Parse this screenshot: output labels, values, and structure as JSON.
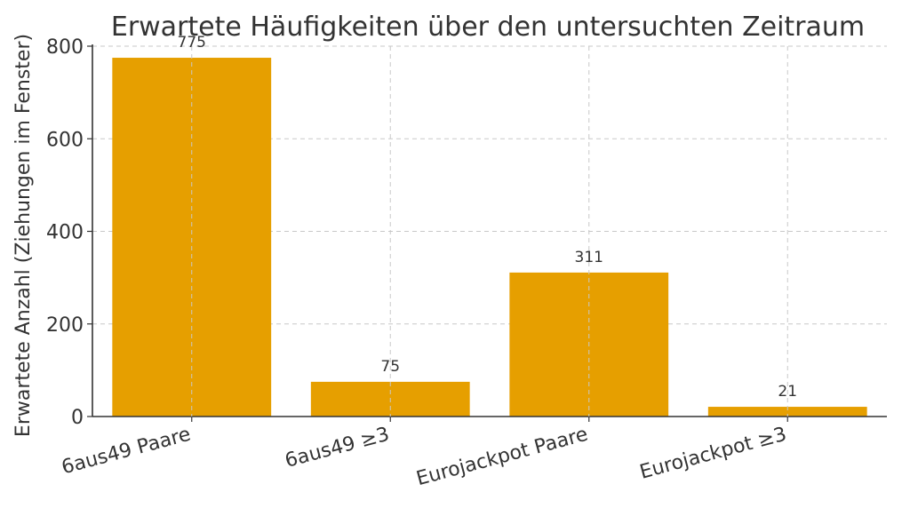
{
  "chart_data": {
    "type": "bar",
    "title": "Erwartete Häufigkeiten über den untersuchten Zeitraum",
    "xlabel": "",
    "ylabel": "Erwartete Anzahl (Ziehungen im Fenster)",
    "categories": [
      "6aus49 Paare",
      "6aus49 ≥3",
      "Eurojackpot Paare",
      "Eurojackpot ≥3"
    ],
    "values": [
      775,
      75,
      311,
      21
    ],
    "data_labels": [
      "775",
      "75",
      "311",
      "21"
    ],
    "ylim": [
      0,
      800
    ],
    "yticks": [
      0,
      200,
      400,
      600,
      800
    ],
    "ytick_labels": [
      "0",
      "200",
      "400",
      "600",
      "800"
    ],
    "grid": true,
    "bar_color": "#E69F00"
  }
}
